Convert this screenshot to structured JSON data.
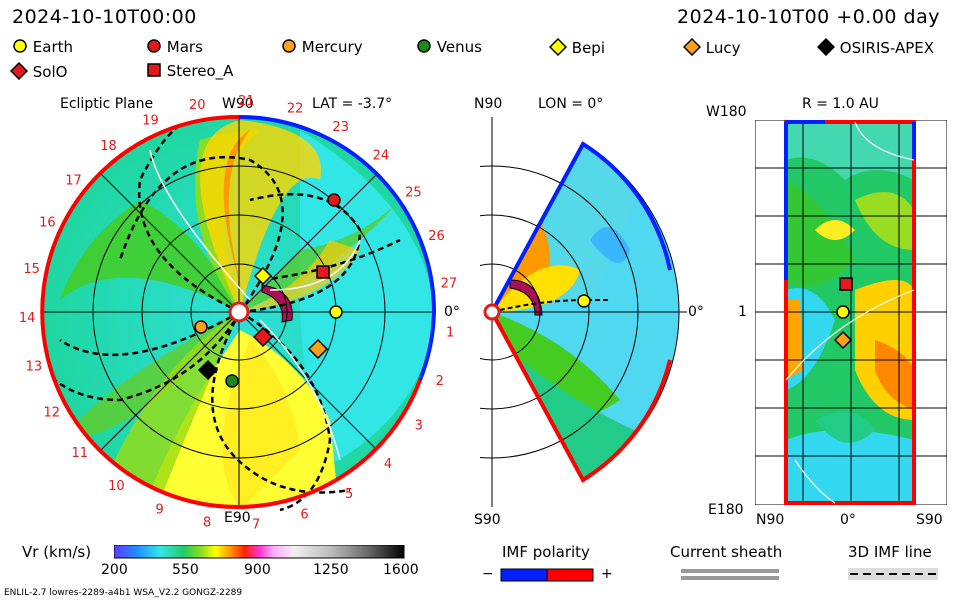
{
  "header": {
    "datetime_left": "2024-10-10T00:00",
    "datetime_right": "2024-10-10T00 +0.00 day"
  },
  "legend": [
    {
      "name": "Earth",
      "marker": "circle",
      "color": "#ffff00"
    },
    {
      "name": "Mars",
      "marker": "circle",
      "color": "#e31a1c"
    },
    {
      "name": "Mercury",
      "marker": "circle",
      "color": "#ff9f1a"
    },
    {
      "name": "Venus",
      "marker": "circle",
      "color": "#1a8a1a"
    },
    {
      "name": "Bepi",
      "marker": "diamond",
      "color": "#ffff00"
    },
    {
      "name": "Lucy",
      "marker": "diamond",
      "color": "#ff9f1a"
    },
    {
      "name": "OSIRIS-APEX",
      "marker": "diamond",
      "color": "#000000"
    },
    {
      "name": "SolO",
      "marker": "diamond",
      "color": "#e31a1c"
    },
    {
      "name": "Stereo_A",
      "marker": "square",
      "color": "#e31a1c"
    }
  ],
  "ecliptic": {
    "title": "Ecliptic Plane",
    "lat_label": "LAT = -3.7°",
    "top_label": "W90",
    "bottom_label": "E90",
    "right_label": "0°",
    "carrington": [
      "1",
      "2",
      "3",
      "4",
      "5",
      "6",
      "7",
      "8",
      "9",
      "10",
      "11",
      "12",
      "13",
      "14",
      "15",
      "16",
      "17",
      "18",
      "19",
      "20",
      "21",
      "22",
      "23",
      "24",
      "25",
      "26",
      "27"
    ]
  },
  "meridional": {
    "lon_label": "LON = 0°",
    "top_label": "N90",
    "bottom_label": "S90",
    "right_label": "0°"
  },
  "radial": {
    "r_label": "R = 1.0 AU",
    "top_label": "W180",
    "bottom_label": "E180",
    "mid_label": "1",
    "x_left": "N90",
    "x_mid": "0°",
    "x_right": "S90"
  },
  "colorbar": {
    "label": "Vr (km/s)",
    "ticks": [
      "200",
      "550",
      "900",
      "1250",
      "1600"
    ]
  },
  "imf": {
    "label": "IMF polarity",
    "minus": "−",
    "plus": "+",
    "neg_color": "#0020ff",
    "pos_color": "#ff0000"
  },
  "sheath": {
    "label": "Current sheath"
  },
  "imfline": {
    "label": "3D IMF line"
  },
  "footer": {
    "left": "ENLIL-2.7 lowres-2289-a4b1 WSA_V2.2 GONGZ-2289"
  }
}
